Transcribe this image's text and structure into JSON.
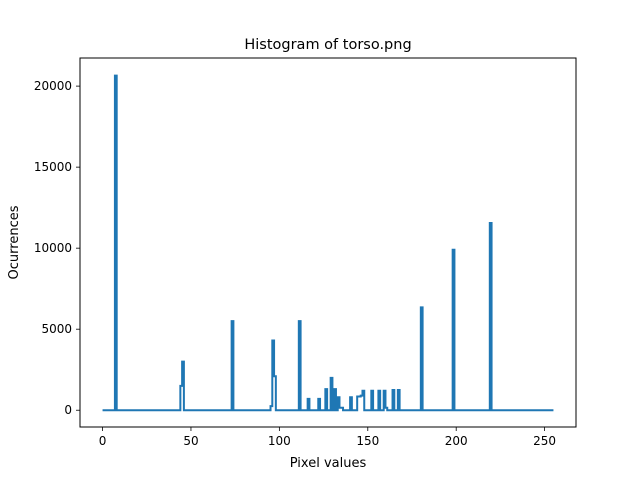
{
  "chart_data": {
    "type": "line",
    "title": "Histogram of torso.png",
    "xlabel": "Pixel values",
    "ylabel": "Ocurrences",
    "xlim": [
      -12.75,
      267.75
    ],
    "ylim": [
      -1035,
      21735
    ],
    "xticks": [
      0,
      50,
      100,
      150,
      200,
      250
    ],
    "yticks": [
      0,
      5000,
      10000,
      15000,
      20000
    ],
    "grid": false,
    "series": [
      {
        "color": "#1f77b4",
        "points": [
          [
            0,
            0
          ],
          [
            7,
            0
          ],
          [
            7,
            20650
          ],
          [
            8,
            20650
          ],
          [
            8,
            0
          ],
          [
            44,
            0
          ],
          [
            44,
            1500
          ],
          [
            45,
            1500
          ],
          [
            45,
            3000
          ],
          [
            46,
            3000
          ],
          [
            46,
            0
          ],
          [
            73,
            0
          ],
          [
            73,
            5500
          ],
          [
            74,
            5500
          ],
          [
            74,
            0
          ],
          [
            95,
            0
          ],
          [
            95,
            250
          ],
          [
            96,
            250
          ],
          [
            96,
            4300
          ],
          [
            97,
            4300
          ],
          [
            97,
            2100
          ],
          [
            98,
            2100
          ],
          [
            98,
            0
          ],
          [
            111,
            0
          ],
          [
            111,
            5500
          ],
          [
            112,
            5500
          ],
          [
            112,
            0
          ],
          [
            116,
            0
          ],
          [
            116,
            700
          ],
          [
            117,
            700
          ],
          [
            117,
            0
          ],
          [
            122,
            0
          ],
          [
            122,
            700
          ],
          [
            123,
            700
          ],
          [
            123,
            0
          ],
          [
            126,
            0
          ],
          [
            126,
            1300
          ],
          [
            127,
            1300
          ],
          [
            127,
            0
          ],
          [
            129,
            0
          ],
          [
            129,
            2000
          ],
          [
            130,
            2000
          ],
          [
            130,
            0
          ],
          [
            131,
            0
          ],
          [
            131,
            1300
          ],
          [
            132,
            1300
          ],
          [
            132,
            0
          ],
          [
            133,
            0
          ],
          [
            133,
            800
          ],
          [
            134,
            800
          ],
          [
            134,
            150
          ],
          [
            136,
            150
          ],
          [
            136,
            0
          ],
          [
            140,
            0
          ],
          [
            140,
            800
          ],
          [
            141,
            800
          ],
          [
            141,
            0
          ],
          [
            144,
            0
          ],
          [
            144,
            850
          ],
          [
            146,
            850
          ],
          [
            146,
            900
          ],
          [
            147,
            900
          ],
          [
            147,
            1200
          ],
          [
            148,
            1200
          ],
          [
            148,
            0
          ],
          [
            152,
            0
          ],
          [
            152,
            1200
          ],
          [
            153,
            1200
          ],
          [
            153,
            0
          ],
          [
            156,
            0
          ],
          [
            156,
            1200
          ],
          [
            157,
            1200
          ],
          [
            157,
            0
          ],
          [
            159,
            0
          ],
          [
            159,
            1200
          ],
          [
            160,
            1200
          ],
          [
            160,
            150
          ],
          [
            161,
            150
          ],
          [
            161,
            0
          ],
          [
            164,
            0
          ],
          [
            164,
            1250
          ],
          [
            165,
            1250
          ],
          [
            165,
            0
          ],
          [
            167,
            0
          ],
          [
            167,
            1250
          ],
          [
            168,
            1250
          ],
          [
            168,
            0
          ],
          [
            180,
            0
          ],
          [
            180,
            6350
          ],
          [
            181,
            6350
          ],
          [
            181,
            0
          ],
          [
            198,
            0
          ],
          [
            198,
            9900
          ],
          [
            199,
            9900
          ],
          [
            199,
            0
          ],
          [
            219,
            0
          ],
          [
            219,
            11550
          ],
          [
            220,
            11550
          ],
          [
            220,
            0
          ],
          [
            255,
            0
          ]
        ]
      }
    ]
  }
}
